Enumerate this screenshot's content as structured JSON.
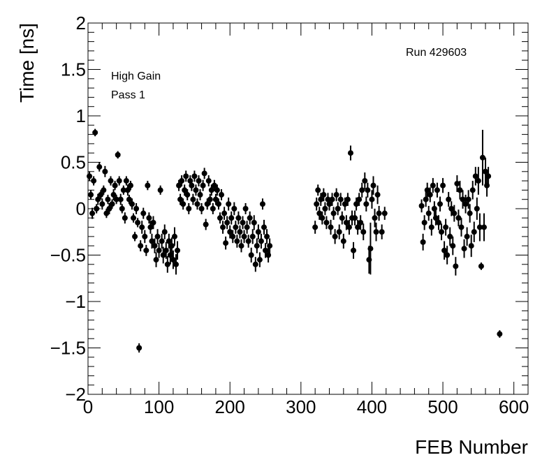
{
  "chart_data": {
    "type": "scatter",
    "title": "",
    "xlabel": "FEB Number",
    "ylabel": "Time [ns]",
    "xlim": [
      0,
      620
    ],
    "ylim": [
      -2,
      2
    ],
    "xticks": [
      "0",
      "100",
      "200",
      "300",
      "400",
      "500",
      "600"
    ],
    "yticks": [
      "−2",
      "−1.5",
      "−1",
      "−0.5",
      "0",
      "0.5",
      "1",
      "1.5",
      "2"
    ],
    "grid": false,
    "legend": "none",
    "annotations": [
      "High Gain",
      "Pass 1",
      "Run 429603"
    ],
    "marker_color": "#000000",
    "series": [
      {
        "points": [
          [
            2,
            0.35,
            0.05
          ],
          [
            4,
            0.15,
            0.05
          ],
          [
            6,
            -0.05,
            0.06
          ],
          [
            8,
            0.3,
            0.05
          ],
          [
            10,
            0.82,
            0.04
          ],
          [
            12,
            0.0,
            0.05
          ],
          [
            14,
            0.1,
            0.06
          ],
          [
            16,
            0.45,
            0.05
          ],
          [
            18,
            0.15,
            0.05
          ],
          [
            20,
            0.05,
            0.06
          ],
          [
            22,
            0.2,
            0.05
          ],
          [
            24,
            0.4,
            0.06
          ],
          [
            26,
            -0.05,
            0.05
          ],
          [
            28,
            0.1,
            0.05
          ],
          [
            30,
            0.0,
            0.06
          ],
          [
            32,
            0.3,
            0.05
          ],
          [
            34,
            0.05,
            0.05
          ],
          [
            36,
            0.15,
            0.06
          ],
          [
            38,
            0.25,
            0.05
          ],
          [
            40,
            0.1,
            0.05
          ],
          [
            42,
            0.58,
            0.04
          ],
          [
            44,
            0.3,
            0.05
          ],
          [
            46,
            0.1,
            0.06
          ],
          [
            48,
            0.0,
            0.05
          ],
          [
            50,
            0.2,
            0.05
          ],
          [
            52,
            -0.1,
            0.06
          ],
          [
            54,
            0.3,
            0.05
          ],
          [
            56,
            0.2,
            0.06
          ],
          [
            58,
            0.1,
            0.05
          ],
          [
            60,
            0.25,
            0.05
          ],
          [
            62,
            0.05,
            0.06
          ],
          [
            64,
            -0.1,
            0.05
          ],
          [
            66,
            -0.3,
            0.05
          ],
          [
            68,
            0.0,
            0.06
          ],
          [
            70,
            -0.15,
            0.05
          ],
          [
            72,
            -1.5,
            0.05
          ],
          [
            74,
            -0.4,
            0.06
          ],
          [
            76,
            -0.2,
            0.07
          ],
          [
            78,
            -0.05,
            0.06
          ],
          [
            80,
            -0.3,
            0.07
          ],
          [
            82,
            -0.45,
            0.06
          ],
          [
            84,
            0.25,
            0.05
          ],
          [
            86,
            -0.1,
            0.06
          ],
          [
            88,
            -0.2,
            0.07
          ],
          [
            90,
            -0.35,
            0.08
          ],
          [
            92,
            -0.15,
            0.07
          ],
          [
            94,
            -0.4,
            0.08
          ],
          [
            96,
            -0.55,
            0.08
          ],
          [
            98,
            -0.3,
            0.08
          ],
          [
            100,
            -0.45,
            0.08
          ],
          [
            102,
            0.2,
            0.05
          ],
          [
            104,
            -0.35,
            0.08
          ],
          [
            106,
            -0.5,
            0.09
          ],
          [
            108,
            -0.25,
            0.08
          ],
          [
            110,
            -0.45,
            0.09
          ],
          [
            112,
            -0.6,
            0.09
          ],
          [
            114,
            -0.35,
            0.08
          ],
          [
            116,
            -0.5,
            0.1
          ],
          [
            118,
            -0.4,
            0.09
          ],
          [
            120,
            -0.55,
            0.1
          ],
          [
            122,
            -0.3,
            0.1
          ],
          [
            124,
            -0.6,
            0.11
          ],
          [
            126,
            -0.45,
            0.1
          ],
          [
            128,
            0.25,
            0.06
          ],
          [
            130,
            0.1,
            0.06
          ],
          [
            132,
            0.3,
            0.06
          ],
          [
            134,
            0.05,
            0.06
          ],
          [
            136,
            0.2,
            0.06
          ],
          [
            138,
            0.35,
            0.06
          ],
          [
            140,
            0.15,
            0.06
          ],
          [
            142,
            0.0,
            0.06
          ],
          [
            144,
            0.3,
            0.06
          ],
          [
            146,
            0.25,
            0.06
          ],
          [
            148,
            0.1,
            0.06
          ],
          [
            150,
            0.35,
            0.06
          ],
          [
            152,
            0.2,
            0.06
          ],
          [
            154,
            0.05,
            0.06
          ],
          [
            156,
            0.3,
            0.06
          ],
          [
            158,
            0.15,
            0.06
          ],
          [
            160,
            0.0,
            0.06
          ],
          [
            162,
            0.25,
            0.06
          ],
          [
            164,
            0.38,
            0.06
          ],
          [
            166,
            -0.17,
            0.06
          ],
          [
            168,
            0.05,
            0.06
          ],
          [
            170,
            0.3,
            0.06
          ],
          [
            172,
            0.1,
            0.06
          ],
          [
            174,
            0.2,
            0.06
          ],
          [
            176,
            0.0,
            0.06
          ],
          [
            178,
            0.25,
            0.06
          ],
          [
            180,
            0.1,
            0.06
          ],
          [
            182,
            0.2,
            0.06
          ],
          [
            184,
            0.05,
            0.06
          ],
          [
            186,
            -0.1,
            0.06
          ],
          [
            188,
            0.15,
            0.06
          ],
          [
            190,
            -0.2,
            0.07
          ],
          [
            192,
            -0.05,
            0.07
          ],
          [
            194,
            -0.37,
            0.07
          ],
          [
            196,
            -0.15,
            0.07
          ],
          [
            198,
            0.05,
            0.07
          ],
          [
            200,
            -0.25,
            0.07
          ],
          [
            202,
            -0.1,
            0.07
          ],
          [
            204,
            -0.3,
            0.07
          ],
          [
            206,
            0.0,
            0.07
          ],
          [
            208,
            -0.2,
            0.07
          ],
          [
            210,
            -0.35,
            0.07
          ],
          [
            212,
            -0.1,
            0.07
          ],
          [
            214,
            -0.25,
            0.07
          ],
          [
            216,
            -0.4,
            0.07
          ],
          [
            218,
            -0.15,
            0.07
          ],
          [
            220,
            -0.3,
            0.07
          ],
          [
            222,
            0.0,
            0.06
          ],
          [
            224,
            -0.2,
            0.07
          ],
          [
            226,
            -0.35,
            0.07
          ],
          [
            228,
            -0.1,
            0.07
          ],
          [
            230,
            -0.5,
            0.08
          ],
          [
            232,
            -0.3,
            0.08
          ],
          [
            234,
            -0.15,
            0.08
          ],
          [
            236,
            -0.6,
            0.08
          ],
          [
            238,
            -0.4,
            0.08
          ],
          [
            240,
            -0.25,
            0.08
          ],
          [
            242,
            -0.55,
            0.08
          ],
          [
            244,
            -0.35,
            0.08
          ],
          [
            246,
            0.05,
            0.06
          ],
          [
            248,
            -0.2,
            0.08
          ],
          [
            250,
            -0.45,
            0.08
          ],
          [
            252,
            -0.3,
            0.08
          ],
          [
            254,
            -0.5,
            0.08
          ],
          [
            256,
            -0.4,
            0.08
          ],
          [
            320,
            -0.2,
            0.07
          ],
          [
            322,
            0.05,
            0.07
          ],
          [
            324,
            0.2,
            0.06
          ],
          [
            326,
            -0.05,
            0.07
          ],
          [
            328,
            0.1,
            0.07
          ],
          [
            330,
            -0.1,
            0.07
          ],
          [
            332,
            0.15,
            0.07
          ],
          [
            334,
            0.0,
            0.07
          ],
          [
            336,
            -0.15,
            0.07
          ],
          [
            338,
            0.1,
            0.07
          ],
          [
            340,
            0.05,
            0.07
          ],
          [
            342,
            -0.2,
            0.08
          ],
          [
            344,
            0.1,
            0.07
          ],
          [
            346,
            -0.05,
            0.07
          ],
          [
            348,
            -0.3,
            0.08
          ],
          [
            350,
            0.15,
            0.07
          ],
          [
            352,
            0.0,
            0.07
          ],
          [
            354,
            -0.25,
            0.08
          ],
          [
            356,
            0.1,
            0.07
          ],
          [
            358,
            -0.1,
            0.07
          ],
          [
            360,
            -0.35,
            0.08
          ],
          [
            362,
            0.05,
            0.07
          ],
          [
            364,
            -0.15,
            0.08
          ],
          [
            366,
            0.1,
            0.07
          ],
          [
            368,
            -0.2,
            0.08
          ],
          [
            370,
            0.6,
            0.08
          ],
          [
            372,
            -0.1,
            0.08
          ],
          [
            374,
            -0.45,
            0.09
          ],
          [
            376,
            -0.1,
            0.08
          ],
          [
            378,
            0.05,
            0.07
          ],
          [
            380,
            -0.2,
            0.08
          ],
          [
            382,
            0.1,
            0.07
          ],
          [
            384,
            -0.15,
            0.08
          ],
          [
            386,
            0.2,
            0.08
          ],
          [
            388,
            -0.25,
            0.09
          ],
          [
            390,
            0.3,
            0.09
          ],
          [
            392,
            0.05,
            0.08
          ],
          [
            394,
            0.2,
            0.08
          ],
          [
            396,
            -0.55,
            0.15
          ],
          [
            398,
            -0.43,
            0.28
          ],
          [
            400,
            0.1,
            0.1
          ],
          [
            402,
            0.25,
            0.1
          ],
          [
            404,
            -0.1,
            0.1
          ],
          [
            406,
            -0.25,
            0.1
          ],
          [
            408,
            0.15,
            0.1
          ],
          [
            410,
            -0.05,
            0.08
          ],
          [
            414,
            -0.25,
            0.08
          ],
          [
            418,
            -0.05,
            0.07
          ],
          [
            470,
            0.03,
            0.07
          ],
          [
            472,
            -0.36,
            0.09
          ],
          [
            474,
            -0.15,
            0.08
          ],
          [
            476,
            0.1,
            0.08
          ],
          [
            478,
            0.2,
            0.08
          ],
          [
            480,
            -0.05,
            0.08
          ],
          [
            482,
            0.15,
            0.08
          ],
          [
            484,
            -0.2,
            0.09
          ],
          [
            486,
            0.25,
            0.08
          ],
          [
            488,
            0.0,
            0.08
          ],
          [
            490,
            -0.1,
            0.08
          ],
          [
            492,
            0.2,
            0.08
          ],
          [
            494,
            -0.15,
            0.08
          ],
          [
            496,
            0.05,
            0.08
          ],
          [
            498,
            -0.25,
            0.09
          ],
          [
            500,
            0.25,
            0.08
          ],
          [
            502,
            -0.45,
            0.1
          ],
          [
            504,
            -0.2,
            0.09
          ],
          [
            506,
            -0.5,
            0.1
          ],
          [
            508,
            0.1,
            0.08
          ],
          [
            510,
            -0.3,
            0.1
          ],
          [
            512,
            0.0,
            0.08
          ],
          [
            514,
            -0.4,
            0.1
          ],
          [
            516,
            -0.05,
            0.09
          ],
          [
            518,
            -0.62,
            0.1
          ],
          [
            520,
            0.27,
            0.09
          ],
          [
            522,
            -0.1,
            0.09
          ],
          [
            524,
            0.2,
            0.1
          ],
          [
            526,
            -0.2,
            0.1
          ],
          [
            528,
            0.1,
            0.1
          ],
          [
            530,
            -0.43,
            0.1
          ],
          [
            532,
            0.05,
            0.1
          ],
          [
            534,
            -0.3,
            0.1
          ],
          [
            536,
            0.1,
            0.1
          ],
          [
            538,
            -0.05,
            0.1
          ],
          [
            540,
            -0.4,
            0.12
          ],
          [
            542,
            0.2,
            0.1
          ],
          [
            544,
            -0.25,
            0.11
          ],
          [
            546,
            0.35,
            0.1
          ],
          [
            548,
            0.0,
            0.12
          ],
          [
            550,
            0.3,
            0.15
          ],
          [
            552,
            -0.2,
            0.15
          ],
          [
            554,
            -0.62,
            0.04
          ],
          [
            556,
            0.55,
            0.3
          ],
          [
            558,
            -0.2,
            0.15
          ],
          [
            560,
            0.4,
            0.15
          ],
          [
            562,
            0.25,
            0.12
          ],
          [
            564,
            0.35,
            0.1
          ],
          [
            580,
            -1.35,
            0.04
          ]
        ]
      }
    ]
  }
}
